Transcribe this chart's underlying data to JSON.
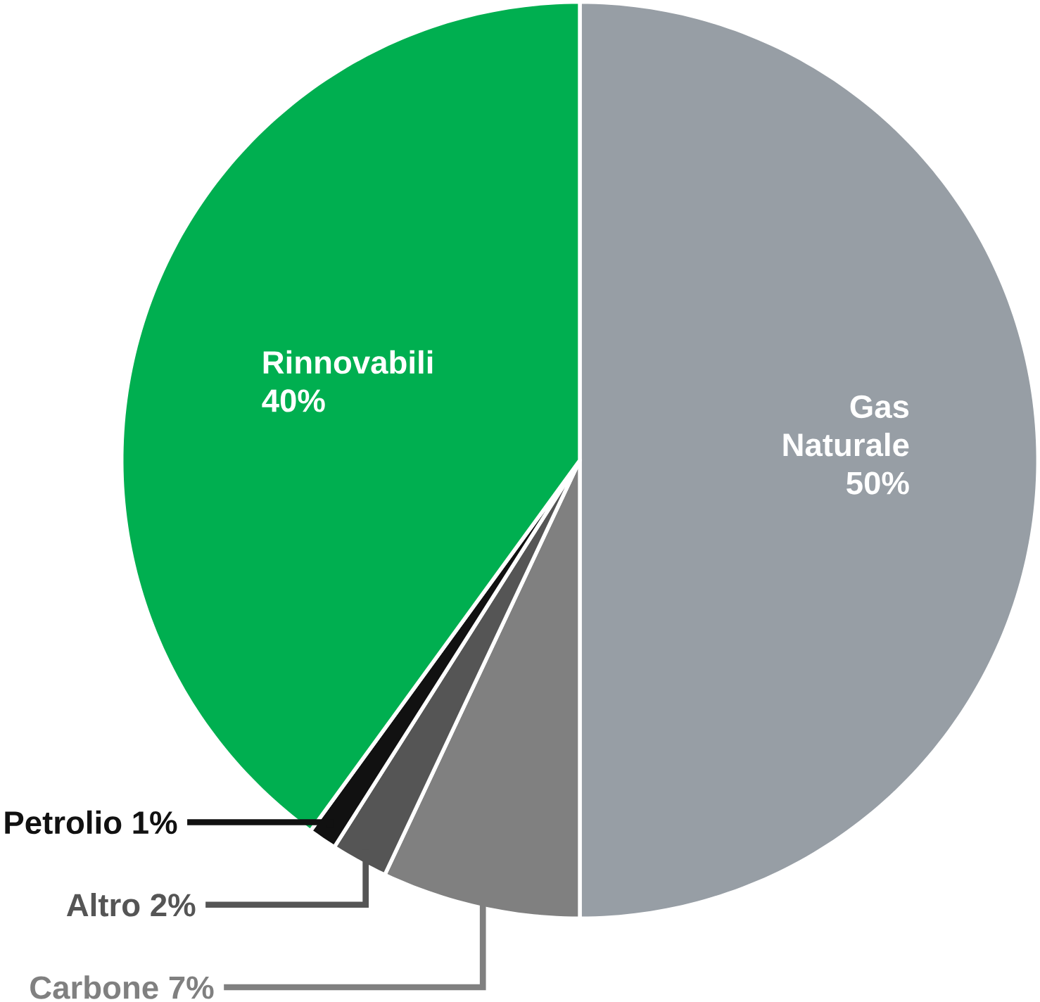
{
  "chart_data": {
    "type": "pie",
    "categories": [
      "Gas Naturale",
      "Carbone",
      "Altro",
      "Petrolio",
      "Rinnovabili"
    ],
    "values": [
      50,
      7,
      2,
      1,
      40
    ],
    "value_labels": [
      "50%",
      "7%",
      "2%",
      "1%",
      "40%"
    ],
    "colors": [
      "#979ea5",
      "#808080",
      "#555555",
      "#111111",
      "#00af50"
    ]
  }
}
